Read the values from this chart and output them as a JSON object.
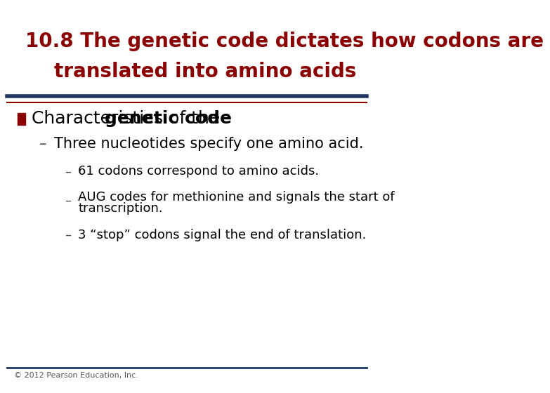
{
  "title_line1": "10.8 The genetic code dictates how codons are",
  "title_line2": "translated into amino acids",
  "title_color": "#8B0000",
  "title_fontsize": 20,
  "title_bold": true,
  "separator_color_top": "#1F3864",
  "separator_color_bottom": "#8B0000",
  "bg_color": "#FFFFFF",
  "bullet1_text_normal": "Characteristics of the ",
  "bullet1_text_bold": "genetic code",
  "bullet1_color": "#000000",
  "bullet1_fontsize": 18,
  "bullet1_square_color": "#8B0000",
  "sub1_text": "Three nucleotides specify one amino acid.",
  "sub1_fontsize": 15,
  "sub1_color": "#000000",
  "sub2a_text": "61 codons correspond to amino acids.",
  "sub2a_fontsize": 13,
  "sub2a_color": "#000000",
  "sub2b_line1": "AUG codes for methionine and signals the start of",
  "sub2b_line2": "transcription.",
  "sub2b_fontsize": 13,
  "sub2b_color": "#000000",
  "sub2c_text": "3 “stop” codons signal the end of translation.",
  "sub2c_fontsize": 13,
  "sub2c_color": "#000000",
  "footer_text": "© 2012 Pearson Education, Inc.",
  "footer_color": "#555555",
  "footer_fontsize": 8,
  "dash_color": "#444444"
}
